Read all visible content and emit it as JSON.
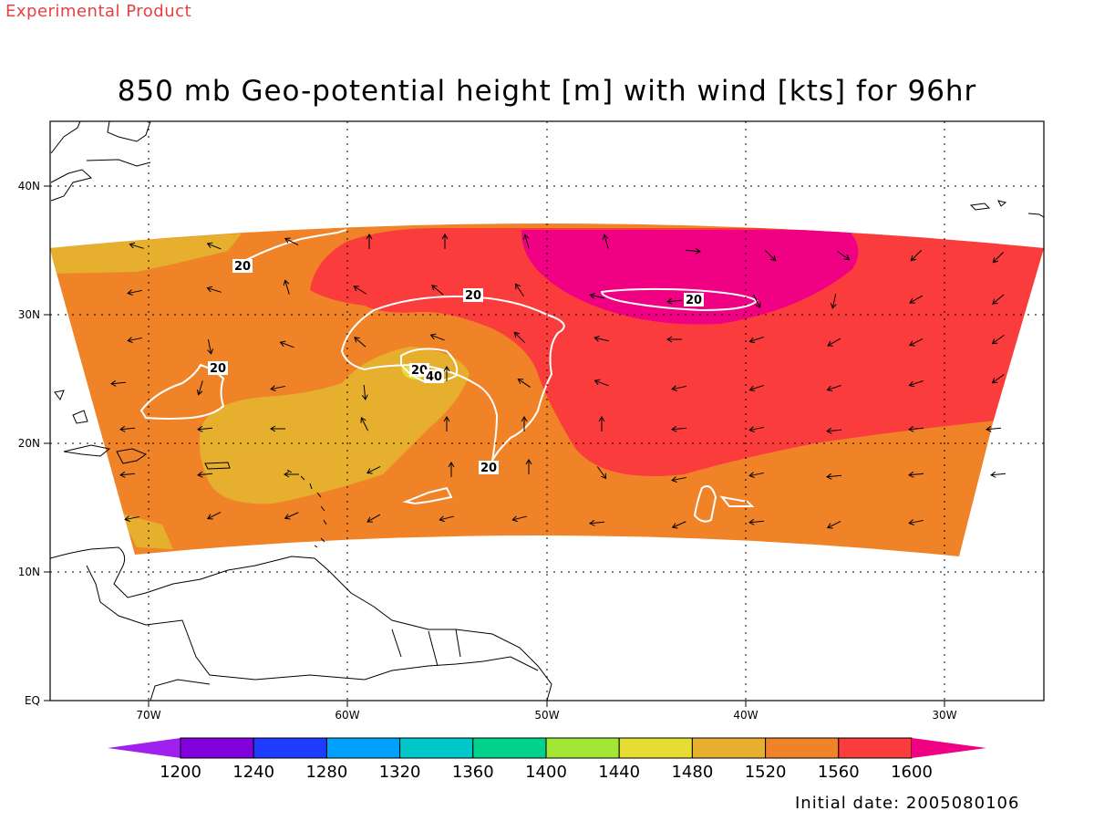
{
  "header": {
    "experimental": "Experimental Product",
    "title": "850 mb Geo-potential height [m] with wind [kts] for 96hr"
  },
  "footer": {
    "initial_date": "Initial date: 2005080106"
  },
  "map": {
    "lon_range": [
      -75,
      -25
    ],
    "lat_range": [
      0,
      45
    ],
    "x_ticks": [
      "70W",
      "60W",
      "50W",
      "40W",
      "30W"
    ],
    "y_ticks": [
      "EQ",
      "10N",
      "20N",
      "30N",
      "40N"
    ],
    "grid": "dotted",
    "contour_labels": [
      "20",
      "20",
      "20",
      "20",
      "20",
      "20",
      "40"
    ]
  },
  "colorbar": {
    "labels": [
      "1200",
      "1240",
      "1280",
      "1320",
      "1360",
      "1400",
      "1440",
      "1480",
      "1520",
      "1560",
      "1600"
    ],
    "colors": [
      "#a020f0",
      "#8200dc",
      "#1e3cff",
      "#00a0ff",
      "#00c8c8",
      "#00d28c",
      "#a0e632",
      "#e6dc32",
      "#e6af2d",
      "#f08228",
      "#fa3c3c",
      "#f00082"
    ]
  },
  "field_colors": {
    "c1480": "#e6dc32",
    "c1520": "#e6af2d",
    "c1560": "#f08228",
    "c1600": "#fa3c3c",
    "c1640": "#f00082"
  }
}
